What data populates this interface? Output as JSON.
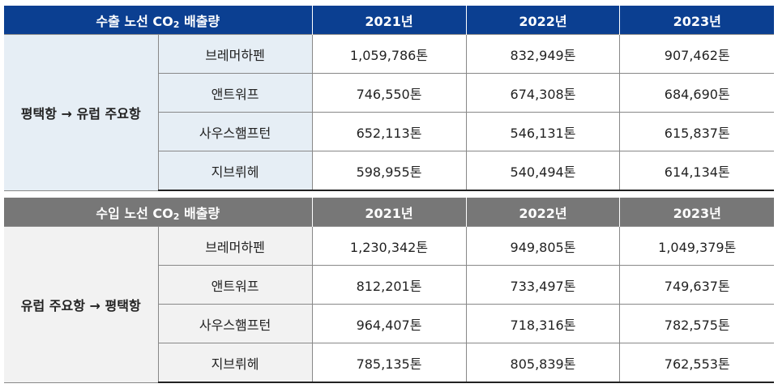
{
  "tables": [
    {
      "title_pre": "수출 노선 CO",
      "title_sub": "2",
      "title_post": " 배출량",
      "years": [
        "2021년",
        "2022년",
        "2023년"
      ],
      "route": "평택항 → 유럽 주요항",
      "rows": [
        {
          "port": "브레머하펜",
          "values": [
            "1,059,786톤",
            "832,949톤",
            "907,462톤"
          ]
        },
        {
          "port": "앤트워프",
          "values": [
            "746,550톤",
            "674,308톤",
            "684,690톤"
          ]
        },
        {
          "port": "사우스햄프턴",
          "values": [
            "652,113톤",
            "546,131톤",
            "615,837톤"
          ]
        },
        {
          "port": "지브뤼헤",
          "values": [
            "598,955톤",
            "540,494톤",
            "614,134톤"
          ]
        }
      ]
    },
    {
      "title_pre": "수입 노선 CO",
      "title_sub": "2",
      "title_post": " 배출량",
      "years": [
        "2021년",
        "2022년",
        "2023년"
      ],
      "route": "유럽 주요항 → 평택항",
      "rows": [
        {
          "port": "브레머하펜",
          "values": [
            "1,230,342톤",
            "949,805톤",
            "1,049,379톤"
          ]
        },
        {
          "port": "앤트워프",
          "values": [
            "812,201톤",
            "733,497톤",
            "749,637톤"
          ]
        },
        {
          "port": "사우스햄프턴",
          "values": [
            "964,407톤",
            "718,316톤",
            "782,575톤"
          ]
        },
        {
          "port": "지브뤼헤",
          "values": [
            "785,135톤",
            "805,839톤",
            "762,553톤"
          ]
        }
      ]
    }
  ]
}
